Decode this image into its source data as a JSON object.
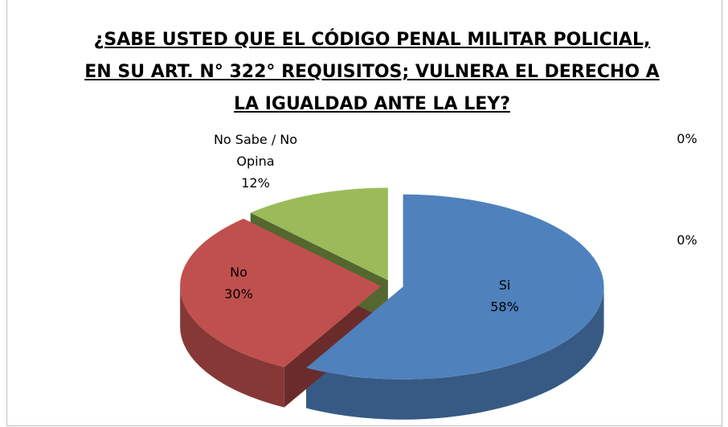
{
  "chart_data": {
    "type": "pie3d",
    "title": "¿SABE USTED QUE EL CÓDIGO PENAL MILITAR POLICIAL, EN SU ART. N° 322° REQUISITOS; VULNERA EL DERECHO A LA IGUALDAD ANTE LA LEY?",
    "categories": [
      "Si",
      "No",
      "No Sabe / No Opina",
      null,
      null
    ],
    "values": [
      58,
      30,
      12,
      0,
      0
    ],
    "value_labels": [
      "58%",
      "30%",
      "12%",
      "0%",
      "0%"
    ],
    "colors": [
      "#4f81bd",
      "#c0504d",
      "#9bbb59",
      "#8064a2",
      "#4bacc6"
    ]
  }
}
